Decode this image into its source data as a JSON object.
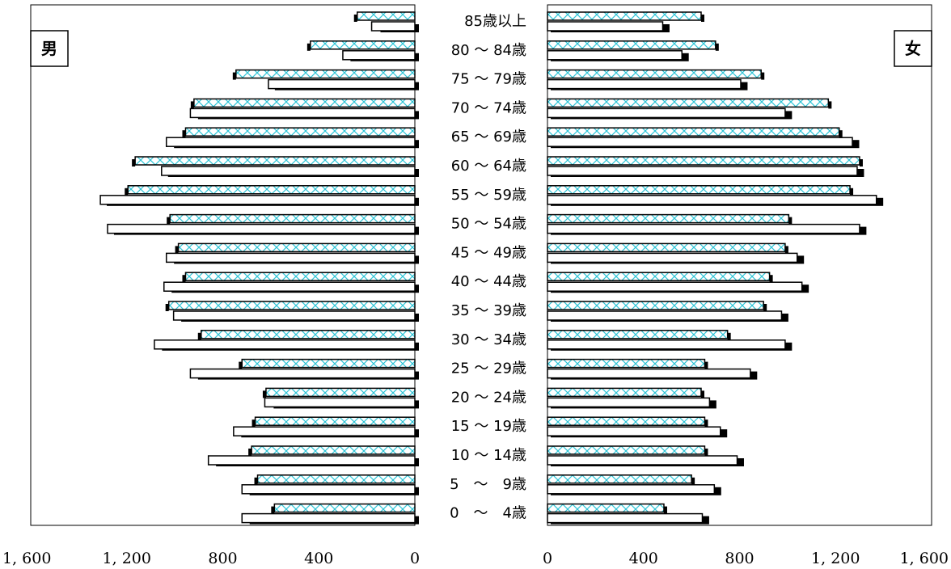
{
  "chart_data": {
    "type": "bar",
    "categories": [
      "85歳以上",
      "80 ～ 84歳",
      "75 ～ 79歳",
      "70 ～ 74歳",
      "65 ～ 69歳",
      "60 ～ 64歳",
      "55 ～ 59歳",
      "50 ～ 54歳",
      "45 ～ 49歳",
      "40 ～ 44歳",
      "35 ～ 39歳",
      "30 ～ 34歳",
      "25 ～ 29歳",
      "20 ～ 24歳",
      "15 ～ 19歳",
      "10 ～ 14歳",
      "5　～　9歳",
      "0　～　4歳"
    ],
    "panels": [
      {
        "label": "男",
        "label_position": "top-left",
        "direction": "left",
        "xlim": [
          0,
          1600
        ],
        "ticks": [
          "1, 600",
          "1, 200",
          "800",
          "400",
          "0"
        ],
        "tick_values": [
          1600,
          1200,
          800,
          400,
          0
        ],
        "series": [
          {
            "style": "cross-hatched",
            "values": [
              240,
              435,
              745,
              920,
              955,
              1165,
              1195,
              1020,
              985,
              955,
              1025,
              890,
              720,
              620,
              665,
              680,
              655,
              585
            ]
          },
          {
            "style": "outline",
            "values": [
              180,
              300,
              610,
              935,
              1035,
              1055,
              1310,
              1280,
              1035,
              1045,
              1005,
              1085,
              935,
              625,
              755,
              860,
              720,
              720
            ]
          },
          {
            "style": "solid",
            "values": [
              160,
              285,
              600,
              920,
              1020,
              1045,
              1300,
              1270,
              1020,
              1030,
              990,
              1070,
              920,
              605,
              740,
              845,
              705,
              705
            ]
          }
        ]
      },
      {
        "label": "女",
        "label_position": "top-right",
        "direction": "right",
        "xlim": [
          0,
          1600
        ],
        "ticks": [
          "0",
          "400",
          "800",
          "1, 200",
          "1, 600"
        ],
        "tick_values": [
          0,
          400,
          800,
          1200,
          1600
        ],
        "series": [
          {
            "style": "cross-hatched",
            "values": [
              640,
              700,
              890,
              1170,
              1215,
              1300,
              1260,
              1005,
              990,
              925,
              900,
              750,
              655,
              640,
              655,
              655,
              600,
              485
            ]
          },
          {
            "style": "outline",
            "values": [
              480,
              560,
              805,
              990,
              1270,
              1290,
              1370,
              1300,
              1040,
              1060,
              975,
              990,
              845,
              675,
              720,
              790,
              695,
              645
            ]
          },
          {
            "style": "solid",
            "values": [
              495,
              575,
              820,
              1005,
              1285,
              1305,
              1385,
              1315,
              1055,
              1075,
              990,
              1005,
              860,
              690,
              735,
              805,
              710,
              660
            ]
          }
        ]
      }
    ]
  }
}
